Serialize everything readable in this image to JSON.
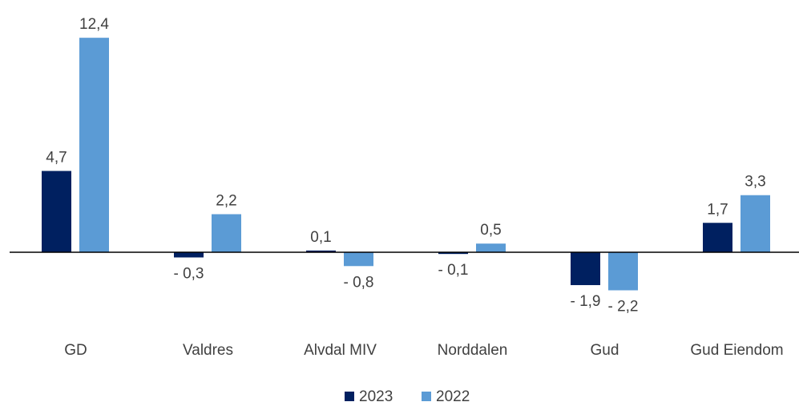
{
  "chart_data": {
    "type": "bar",
    "categories": [
      "GD",
      "Valdres",
      "Alvdal MIV",
      "Norddalen",
      "Gud",
      "Gud Eiendom"
    ],
    "series": [
      {
        "name": "2023",
        "color": "#002060",
        "values": [
          4.7,
          -0.3,
          0.1,
          -0.1,
          -1.9,
          1.7
        ],
        "value_labels": [
          "4,7",
          "- 0,3",
          "0,1",
          "- 0,1",
          "- 1,9",
          "1,7"
        ]
      },
      {
        "name": "2022",
        "color": "#5b9bd5",
        "values": [
          12.4,
          2.2,
          -0.8,
          0.5,
          -2.2,
          3.3
        ],
        "value_labels": [
          "12,4",
          "2,2",
          "- 0,8",
          "0,5",
          "- 2,2",
          "3,3"
        ]
      }
    ],
    "legend": "bottom"
  }
}
